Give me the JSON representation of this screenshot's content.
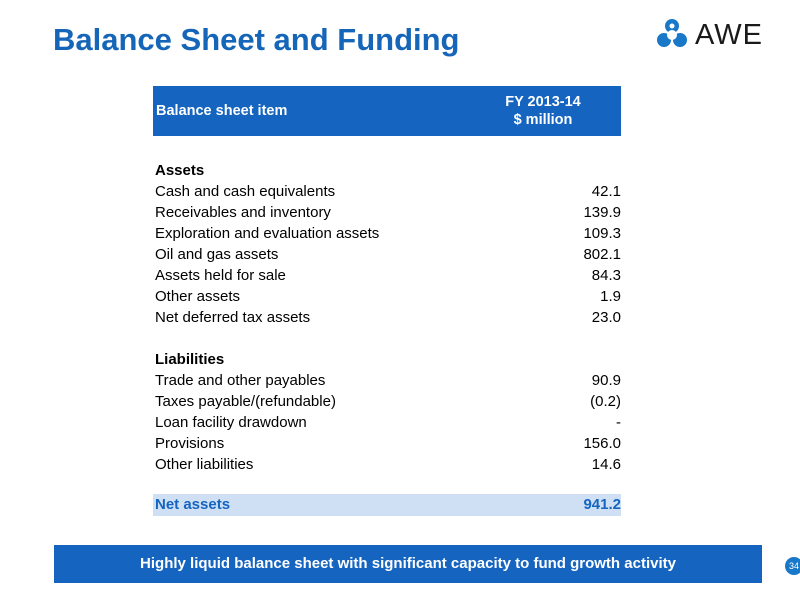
{
  "slide": {
    "title": "Balance Sheet and Funding",
    "logo_text": "AWE",
    "page_number": "34",
    "brand_color": "#1565c0"
  },
  "table": {
    "header": {
      "item_label": "Balance sheet item",
      "column_line1": "FY 2013-14",
      "column_line2": "$ million"
    },
    "assets": {
      "heading": "Assets",
      "rows": [
        {
          "label": "Cash and cash equivalents",
          "value": "42.1"
        },
        {
          "label": "Receivables and inventory",
          "value": "139.9"
        },
        {
          "label": "Exploration and evaluation assets",
          "value": "109.3"
        },
        {
          "label": "Oil and gas assets",
          "value": "802.1"
        },
        {
          "label": "Assets held for sale",
          "value": "84.3"
        },
        {
          "label": "Other assets",
          "value": "1.9"
        },
        {
          "label": "Net deferred tax assets",
          "value": "23.0"
        }
      ]
    },
    "liabilities": {
      "heading": "Liabilities",
      "rows": [
        {
          "label": "Trade and other payables",
          "value": "90.9"
        },
        {
          "label": "Taxes payable/(refundable)",
          "value": "(0.2)"
        },
        {
          "label": "Loan facility drawdown",
          "value": "-"
        },
        {
          "label": "Provisions",
          "value": "156.0"
        },
        {
          "label": "Other liabilities",
          "value": "14.6"
        }
      ]
    },
    "net_assets": {
      "label": "Net assets",
      "value": "941.2"
    }
  },
  "banner": {
    "text": "Highly liquid balance sheet with significant capacity to fund growth activity"
  }
}
